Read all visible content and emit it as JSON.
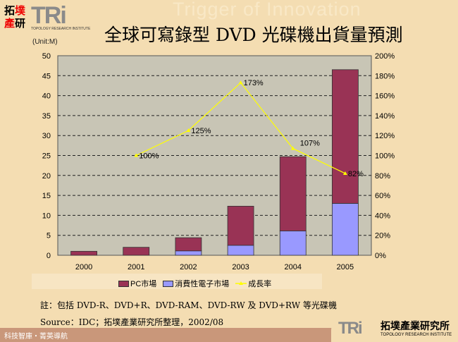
{
  "header": {
    "background_slogan": "Trigger of Innovation",
    "logo_cn": [
      "拓",
      "墣",
      "產",
      "研"
    ],
    "logo_en": "TRi",
    "logo_sub": "TOPOLOGY RESEARCH INSTITUTE",
    "title": "全球可寫錄型 DVD 光碟機出貨量預測",
    "unit": "(Unit:M)"
  },
  "chart_data": {
    "type": "bar",
    "stacked": true,
    "title": "全球可寫錄型 DVD 光碟機出貨量預測",
    "ylabel": "(Unit:M)",
    "categories": [
      "2000",
      "2001",
      "2002",
      "2003",
      "2004",
      "2005"
    ],
    "ylim": [
      0,
      50
    ],
    "yticks": [
      "0",
      "5",
      "10",
      "15",
      "20",
      "25",
      "30",
      "35",
      "40",
      "45",
      "50"
    ],
    "y2lim": [
      0,
      200
    ],
    "y2ticks": [
      "0%",
      "20%",
      "40%",
      "60%",
      "80%",
      "100%",
      "120%",
      "140%",
      "160%",
      "180%",
      "200%"
    ],
    "grid": true,
    "legend_placement": "bottom",
    "series": [
      {
        "name": "消費性電子市場",
        "kind": "bar",
        "color": "#9999ff",
        "values": [
          0,
          0,
          1.1,
          2.5,
          6.1,
          13.0
        ]
      },
      {
        "name": "PC市場",
        "kind": "bar",
        "color": "#993355",
        "values": [
          1.0,
          2.0,
          3.3,
          9.8,
          18.6,
          33.5
        ]
      },
      {
        "name": "成長率",
        "kind": "line",
        "axis": "right",
        "color": "#ffff00",
        "values": [
          null,
          100,
          125,
          173,
          107,
          82
        ],
        "labels": [
          "",
          "100%",
          "125%",
          "173%",
          "107%",
          "82%"
        ]
      }
    ]
  },
  "legend": {
    "pc": "PC市場",
    "consumer": "消費性電子市場",
    "growth": "成長率"
  },
  "note": "註：包括 DVD-R、DVD+R、DVD-RAM、DVD-RW 及 DVD+RW 等光碟機",
  "source": "Source：IDC；拓墣產業研究所整理，2002/08",
  "footer": {
    "slogan": "科技智庫・菁英導航",
    "logo_en": "TRi",
    "logo_cn": "拓墣產業研究所",
    "logo_sub": "TOPOLOGY RESEARCH INSTITUTE"
  }
}
